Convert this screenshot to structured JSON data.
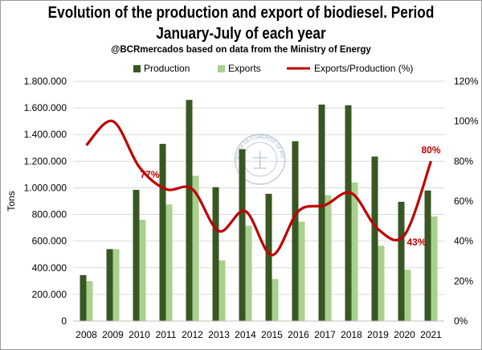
{
  "title_line1": "Evolution of the production and export of biodiesel. Period",
  "title_line2": "January-July of each year",
  "subtitle": "@BCRmercados based on data from the Ministry of Energy",
  "colors": {
    "production": "#385723",
    "exports": "#a9d18e",
    "ratio": "#c00000",
    "grid": "#d9d9d9",
    "watermark": "#8aa0b8"
  },
  "watermark_icon": "bolsa-de-comercio-de-rosario-seal",
  "watermark_text": "BOLSA DE COMERCIO DE ROSARIO",
  "chart_data": {
    "type": "bar",
    "categories": [
      "2008",
      "2009",
      "2010",
      "2011",
      "2012",
      "2013",
      "2014",
      "2015",
      "2016",
      "2017",
      "2018",
      "2019",
      "2020",
      "2021"
    ],
    "series": [
      {
        "name": "Production",
        "type": "bar",
        "axis": "left",
        "values": [
          345000,
          540000,
          985000,
          1330000,
          1660000,
          1005000,
          1290000,
          955000,
          1350000,
          1625000,
          1620000,
          1235000,
          895000,
          980000
        ]
      },
      {
        "name": "Exports",
        "type": "bar",
        "axis": "left",
        "values": [
          300000,
          540000,
          760000,
          875000,
          1090000,
          455000,
          715000,
          315000,
          745000,
          945000,
          1040000,
          565000,
          385000,
          785000
        ]
      },
      {
        "name": "Exports/Production (%)",
        "type": "line",
        "axis": "right",
        "values": [
          88,
          100,
          77,
          66,
          66,
          45,
          55,
          33,
          55,
          58,
          64,
          46,
          43,
          80
        ]
      }
    ],
    "ylabel": "Tons",
    "ylim": [
      0,
      1800000
    ],
    "y_ticks": [
      "0",
      "200.000",
      "400.000",
      "600.000",
      "800.000",
      "1.000.000",
      "1.200.000",
      "1.400.000",
      "1.600.000",
      "1.800.000"
    ],
    "y2lim": [
      0,
      120
    ],
    "y2_ticks": [
      "0%",
      "20%",
      "40%",
      "60%",
      "80%",
      "100%",
      "120%"
    ],
    "annotations": [
      {
        "text": "77%",
        "category": "2010"
      },
      {
        "text": "43%",
        "category": "2020"
      },
      {
        "text": "80%",
        "category": "2021"
      }
    ],
    "grid": true,
    "legend": "top"
  }
}
